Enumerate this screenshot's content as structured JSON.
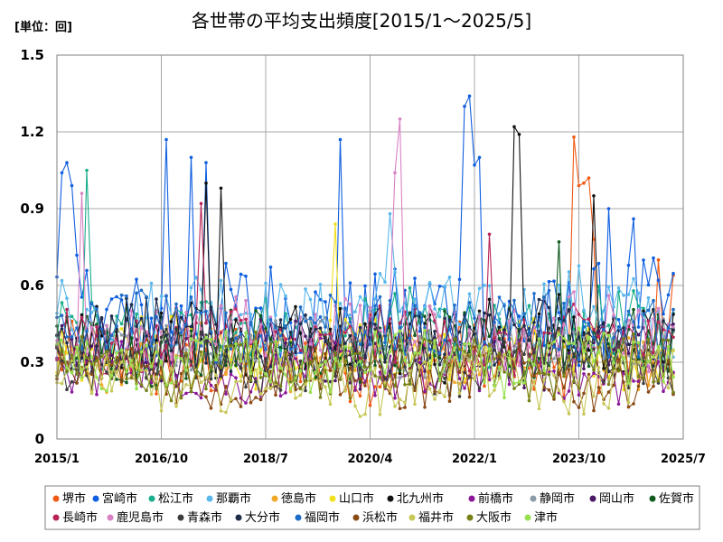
{
  "unit_label": "[単位：回]",
  "chart_data": {
    "type": "line",
    "title": "各世帯の平均支出頻度[2015/1～2025/5]",
    "ylim": [
      0,
      1.5
    ],
    "yticks": [
      "0",
      "0.3",
      "0.6",
      "0.9",
      "1.2",
      "1.5"
    ],
    "xticks": [
      "2015/1",
      "2016/10",
      "2018/7",
      "2020/4",
      "2022/1",
      "2023/10",
      "2025/7"
    ],
    "grid": true,
    "legend_position": "bottom",
    "start": "2015-01",
    "end": "2025-05",
    "series": [
      {
        "name": "堺市",
        "color": "#f05a14",
        "base": 0.3,
        "amp": 0.13,
        "phase": 0.4,
        "peaks": [
          {
            "date": "2023-09",
            "value": 1.18
          },
          {
            "date": "2023-10",
            "value": 0.99
          },
          {
            "date": "2023-11",
            "value": 1.0
          },
          {
            "date": "2023-12",
            "value": 1.02
          },
          {
            "date": "2024-01",
            "value": 0.78
          },
          {
            "date": "2025-02",
            "value": 0.7
          },
          {
            "date": "2025-05",
            "value": 0.64
          }
        ]
      },
      {
        "name": "宮崎市",
        "color": "#0f5fe0",
        "base": 0.48,
        "amp": 0.2,
        "phase": 1.1,
        "peaks": [
          {
            "date": "2015-02",
            "value": 1.04
          },
          {
            "date": "2015-03",
            "value": 1.08
          },
          {
            "date": "2015-04",
            "value": 0.99
          },
          {
            "date": "2016-11",
            "value": 1.17
          },
          {
            "date": "2017-04",
            "value": 1.1
          },
          {
            "date": "2017-07",
            "value": 1.08
          },
          {
            "date": "2019-10",
            "value": 1.17
          },
          {
            "date": "2021-11",
            "value": 1.3
          },
          {
            "date": "2021-12",
            "value": 1.34
          },
          {
            "date": "2022-01",
            "value": 1.07
          },
          {
            "date": "2022-02",
            "value": 1.1
          },
          {
            "date": "2024-04",
            "value": 0.9
          },
          {
            "date": "2024-09",
            "value": 0.86
          }
        ]
      },
      {
        "name": "松江市",
        "color": "#1aae8a",
        "base": 0.42,
        "amp": 0.14,
        "phase": 2.0,
        "peaks": [
          {
            "date": "2015-07",
            "value": 1.05
          }
        ]
      },
      {
        "name": "那覇市",
        "color": "#5ab8ec",
        "base": 0.5,
        "amp": 0.15,
        "phase": 2.7,
        "peaks": [
          {
            "date": "2020-08",
            "value": 0.88
          }
        ]
      },
      {
        "name": "徳島市",
        "color": "#f0a828",
        "base": 0.32,
        "amp": 0.1,
        "phase": 3.3,
        "peaks": []
      },
      {
        "name": "山口市",
        "color": "#f2e01c",
        "base": 0.34,
        "amp": 0.12,
        "phase": 4.0,
        "peaks": [
          {
            "date": "2019-09",
            "value": 0.84
          }
        ]
      },
      {
        "name": "北九州市",
        "color": "#111111",
        "base": 0.4,
        "amp": 0.15,
        "phase": 4.6,
        "peaks": [
          {
            "date": "2017-07",
            "value": 1.0
          },
          {
            "date": "2017-10",
            "value": 0.98
          },
          {
            "date": "2022-09",
            "value": 1.22
          },
          {
            "date": "2022-10",
            "value": 1.19
          },
          {
            "date": "2024-01",
            "value": 0.95
          }
        ]
      },
      {
        "name": "前橋市",
        "color": "#8a1898",
        "base": 0.26,
        "amp": 0.1,
        "phase": 5.2,
        "peaks": []
      },
      {
        "name": "静岡市",
        "color": "#8c9aa8",
        "base": 0.36,
        "amp": 0.1,
        "phase": 5.8,
        "peaks": []
      },
      {
        "name": "岡山市",
        "color": "#4a1866",
        "base": 0.34,
        "amp": 0.11,
        "phase": 0.9,
        "peaks": []
      },
      {
        "name": "佐賀市",
        "color": "#105a20",
        "base": 0.36,
        "amp": 0.12,
        "phase": 1.6,
        "peaks": [
          {
            "date": "2023-06",
            "value": 0.77
          }
        ]
      },
      {
        "name": "長崎市",
        "color": "#b82458",
        "base": 0.38,
        "amp": 0.12,
        "phase": 2.3,
        "peaks": [
          {
            "date": "2017-06",
            "value": 0.92
          },
          {
            "date": "2022-04",
            "value": 0.8
          }
        ]
      },
      {
        "name": "鹿児島市",
        "color": "#d882c4",
        "base": 0.42,
        "amp": 0.13,
        "phase": 3.0,
        "peaks": [
          {
            "date": "2020-09",
            "value": 1.04
          },
          {
            "date": "2020-10",
            "value": 1.25
          },
          {
            "date": "2015-06",
            "value": 0.96
          }
        ]
      },
      {
        "name": "青森市",
        "color": "#3c3c3c",
        "base": 0.3,
        "amp": 0.1,
        "phase": 3.7,
        "peaks": []
      },
      {
        "name": "大分市",
        "color": "#1e2c4a",
        "base": 0.4,
        "amp": 0.12,
        "phase": 4.3,
        "peaks": []
      },
      {
        "name": "福岡市",
        "color": "#1e6cc8",
        "base": 0.44,
        "amp": 0.12,
        "phase": 4.9,
        "peaks": []
      },
      {
        "name": "浜松市",
        "color": "#8a4a14",
        "base": 0.24,
        "amp": 0.1,
        "phase": 5.5,
        "peaks": []
      },
      {
        "name": "福井市",
        "color": "#c8c85a",
        "base": 0.22,
        "amp": 0.1,
        "phase": 0.2,
        "peaks": []
      },
      {
        "name": "大阪市",
        "color": "#788018",
        "base": 0.28,
        "amp": 0.1,
        "phase": 1.3,
        "peaks": []
      },
      {
        "name": "津市",
        "color": "#98e050",
        "base": 0.3,
        "amp": 0.1,
        "phase": 2.5,
        "peaks": []
      }
    ]
  }
}
